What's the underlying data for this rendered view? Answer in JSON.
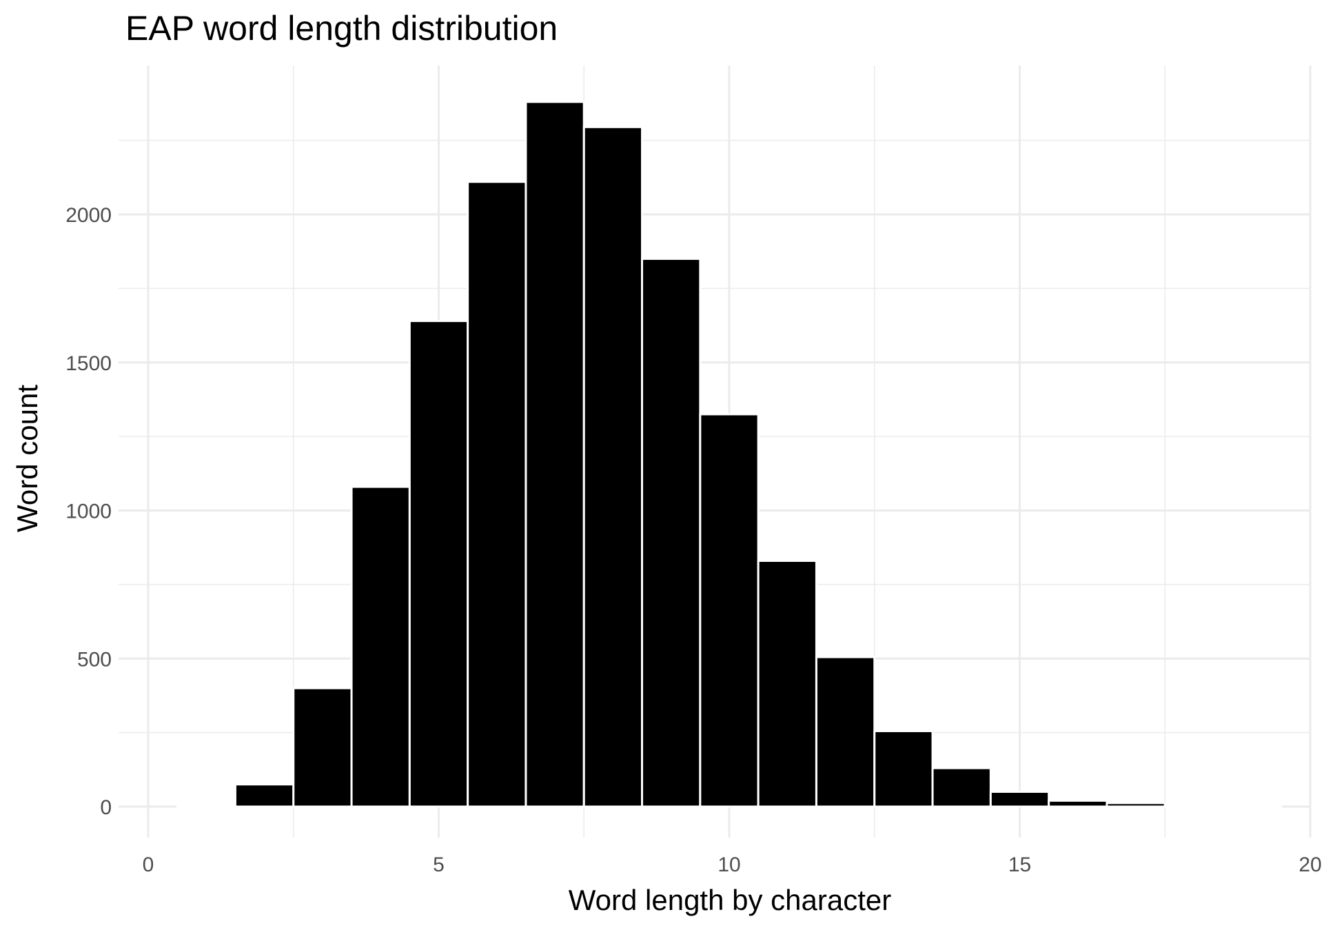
{
  "chart_data": {
    "type": "bar",
    "title": "EAP word length distribution",
    "xlabel": "Word length by character",
    "ylabel": "Word count",
    "x": [
      1,
      2,
      3,
      4,
      5,
      6,
      7,
      8,
      9,
      10,
      11,
      12,
      13,
      14,
      15,
      16,
      17,
      18,
      19
    ],
    "values": [
      5,
      75,
      400,
      1080,
      1640,
      2110,
      2380,
      2295,
      1850,
      1325,
      830,
      505,
      255,
      130,
      50,
      20,
      12,
      6,
      5
    ],
    "xlim": [
      0,
      20
    ],
    "ylim": [
      0,
      2380
    ],
    "x_ticks": [
      0,
      5,
      10,
      15,
      20
    ],
    "y_ticks": [
      0,
      500,
      1000,
      1500,
      2000
    ],
    "grid": true,
    "legend": "none",
    "colors": {
      "bar": "#000000",
      "bar_outline": "#ffffff",
      "grid": "#ebebeb",
      "tick_text": "#4d4d4d"
    }
  }
}
